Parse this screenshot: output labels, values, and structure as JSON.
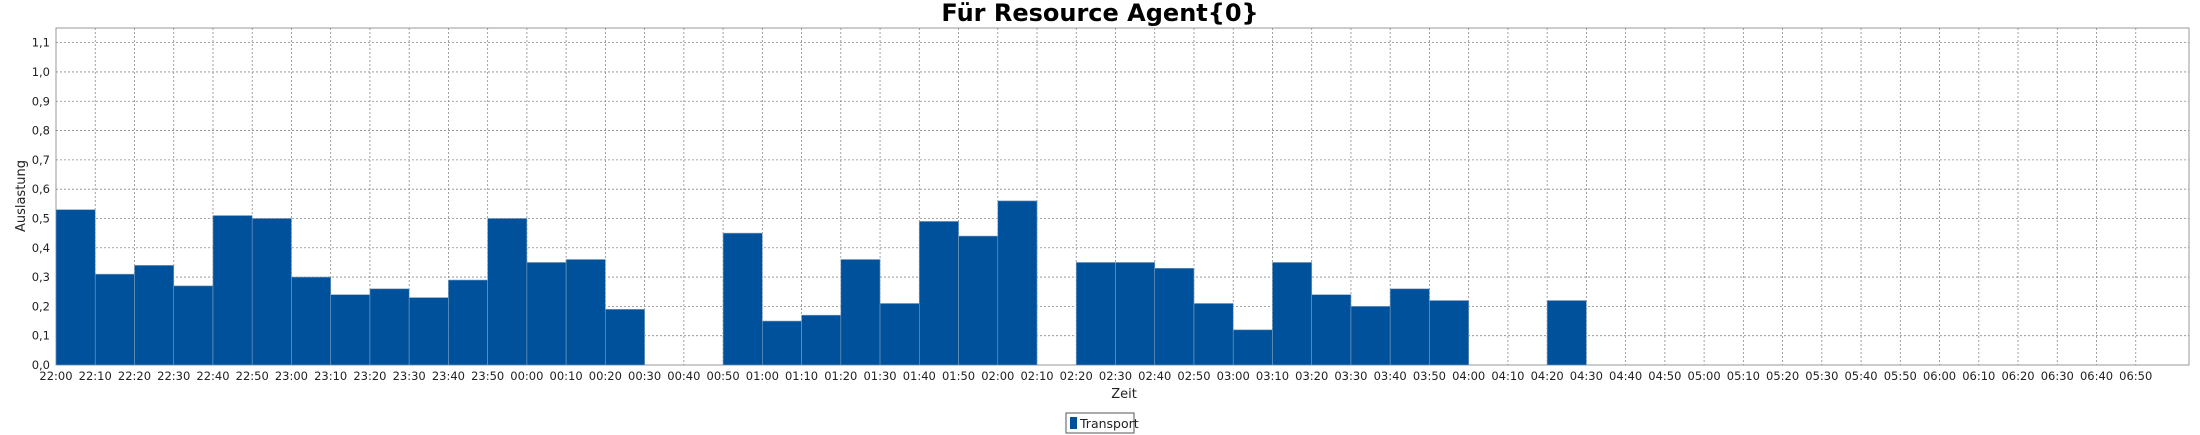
{
  "chart_data": {
    "type": "bar",
    "title": "Für Resource Agent{0}",
    "xlabel": "Zeit",
    "ylabel": "Auslastung",
    "ylim": [
      0,
      1.15
    ],
    "yticks": [
      "0,0",
      "0,1",
      "0,2",
      "0,3",
      "0,4",
      "0,5",
      "0,6",
      "0,7",
      "0,8",
      "0,9",
      "1,0",
      "1,1"
    ],
    "grid": true,
    "legend_position": "bottom-center",
    "color": "#00519c",
    "categories": [
      "22:00",
      "22:10",
      "22:20",
      "22:30",
      "22:40",
      "22:50",
      "23:00",
      "23:10",
      "23:20",
      "23:30",
      "23:40",
      "23:50",
      "00:00",
      "00:10",
      "00:20",
      "00:30",
      "00:40",
      "00:50",
      "01:00",
      "01:10",
      "01:20",
      "01:30",
      "01:40",
      "01:50",
      "02:00",
      "02:10",
      "02:20",
      "02:30",
      "02:40",
      "02:50",
      "03:00",
      "03:10",
      "03:20",
      "03:30",
      "03:40",
      "03:50",
      "04:00",
      "04:10",
      "04:20",
      "04:30",
      "04:40",
      "04:50",
      "05:00",
      "05:10",
      "05:20",
      "05:30",
      "05:40",
      "05:50",
      "06:00",
      "06:10",
      "06:20",
      "06:30",
      "06:40",
      "06:50"
    ],
    "series": [
      {
        "name": "Transport",
        "values": [
          0.53,
          0.31,
          0.34,
          0.27,
          0.51,
          0.5,
          0.3,
          0.24,
          0.26,
          0.23,
          0.29,
          0.5,
          0.35,
          0.36,
          0.19,
          null,
          null,
          0.45,
          0.15,
          0.17,
          0.36,
          0.21,
          0.49,
          0.44,
          0.56,
          null,
          0.35,
          0.35,
          0.33,
          0.21,
          0.12,
          0.35,
          0.24,
          0.2,
          0.26,
          0.22,
          null,
          null,
          0.22,
          null,
          null,
          null,
          null,
          null,
          null,
          null,
          null,
          null,
          null,
          null,
          null,
          null,
          null,
          null
        ]
      }
    ]
  }
}
